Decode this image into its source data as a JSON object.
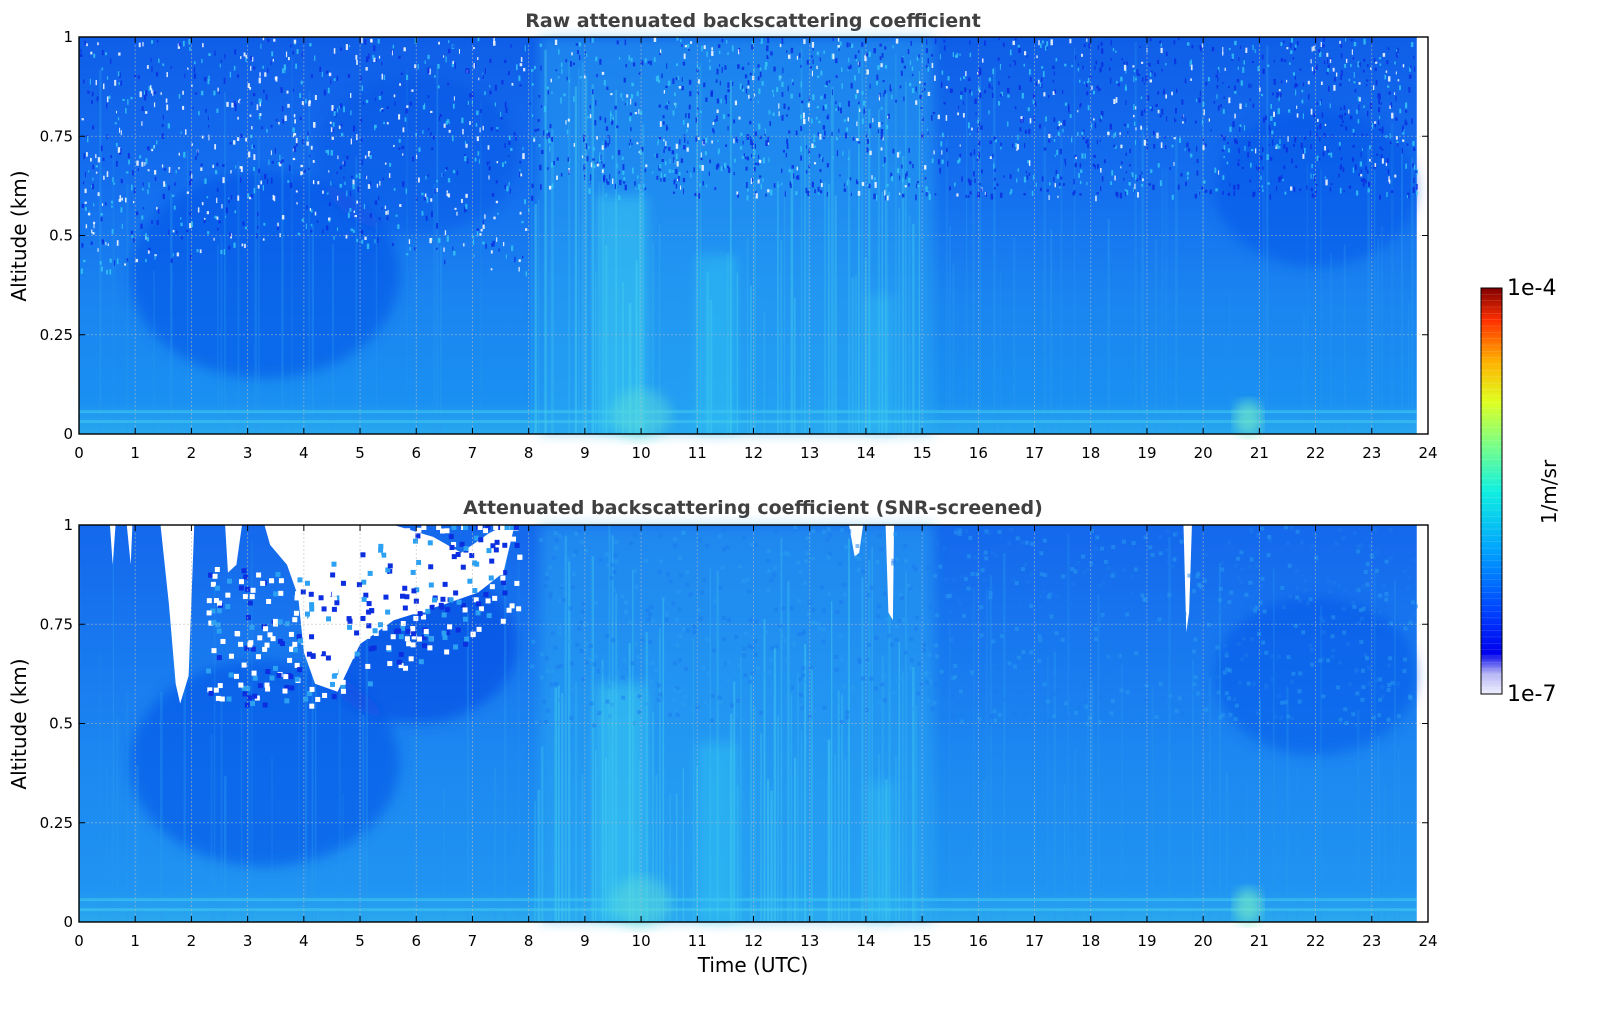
{
  "chart_data": [
    {
      "type": "heatmap",
      "title": "Raw attenuated backscattering coefficient",
      "xlabel": "",
      "ylabel": "Altitude (km)",
      "xlim": [
        0,
        24
      ],
      "ylim": [
        0,
        1
      ],
      "xticks": [
        "0",
        "1",
        "2",
        "3",
        "4",
        "5",
        "6",
        "7",
        "8",
        "9",
        "10",
        "11",
        "12",
        "13",
        "14",
        "15",
        "16",
        "17",
        "18",
        "19",
        "20",
        "21",
        "22",
        "23",
        "24"
      ],
      "yticks": [
        "0",
        "0.25",
        "0.5",
        "0.75",
        "1"
      ],
      "data_end_time": 23.8,
      "grid": true,
      "colormap": "jet",
      "screened": false
    },
    {
      "type": "heatmap",
      "title": "Attenuated backscattering coefficient (SNR-screened)",
      "xlabel": "Time (UTC)",
      "ylabel": "Altitude (km)",
      "xlim": [
        0,
        24
      ],
      "ylim": [
        0,
        1
      ],
      "xticks": [
        "0",
        "1",
        "2",
        "3",
        "4",
        "5",
        "6",
        "7",
        "8",
        "9",
        "10",
        "11",
        "12",
        "13",
        "14",
        "15",
        "16",
        "17",
        "18",
        "19",
        "20",
        "21",
        "22",
        "23",
        "24"
      ],
      "yticks": [
        "0",
        "0.25",
        "0.5",
        "0.75",
        "1"
      ],
      "data_end_time": 23.8,
      "grid": true,
      "colormap": "jet",
      "screened": true
    }
  ],
  "colorbar": {
    "label": "1/m/sr",
    "max_label": "1e-4",
    "min_label": "1e-7",
    "vmin": 1e-07,
    "vmax": 0.0001,
    "scale": "log"
  },
  "colors": {
    "title": "#404040",
    "grid": "#bbbbbb"
  }
}
